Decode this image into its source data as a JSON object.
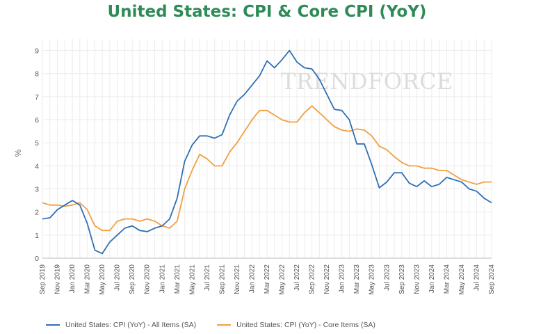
{
  "colors": {
    "cpi": "#2f6fb3",
    "core": "#f0a040",
    "title": "#2e8b57"
  },
  "watermark": "TRENDFORCE",
  "chart_data": {
    "type": "line",
    "title": "United States: CPI & Core CPI (YoY)",
    "xlabel": "",
    "ylabel": "%",
    "ylim": [
      0,
      9.5
    ],
    "yticks": [
      0,
      1,
      2,
      3,
      4,
      5,
      6,
      7,
      8,
      9
    ],
    "x": [
      "Sep 2019",
      "Oct 2019",
      "Nov 2019",
      "Dec 2019",
      "Jan 2020",
      "Feb 2020",
      "Mar 2020",
      "Apr 2020",
      "May 2020",
      "Jun 2020",
      "Jul 2020",
      "Aug 2020",
      "Sep 2020",
      "Oct 2020",
      "Nov 2020",
      "Dec 2020",
      "Jan 2021",
      "Feb 2021",
      "Mar 2021",
      "Apr 2021",
      "May 2021",
      "Jun 2021",
      "Jul 2021",
      "Aug 2021",
      "Sep 2021",
      "Oct 2021",
      "Nov 2021",
      "Dec 2021",
      "Jan 2022",
      "Feb 2022",
      "Mar 2022",
      "Apr 2022",
      "May 2022",
      "Jun 2022",
      "Jul 2022",
      "Aug 2022",
      "Sep 2022",
      "Oct 2022",
      "Nov 2022",
      "Dec 2022",
      "Jan 2023",
      "Feb 2023",
      "Mar 2023",
      "Apr 2023",
      "May 2023",
      "Jun 2023",
      "Jul 2023",
      "Aug 2023",
      "Sep 2023",
      "Oct 2023",
      "Nov 2023",
      "Dec 2023",
      "Jan 2024",
      "Feb 2024",
      "Mar 2024",
      "Apr 2024",
      "May 2024",
      "Jun 2024",
      "Jul 2024",
      "Aug 2024",
      "Sep 2024"
    ],
    "series": [
      {
        "name": "United States: CPI (YoY) - All Items (SA)",
        "values": [
          1.7,
          1.75,
          2.1,
          2.3,
          2.5,
          2.3,
          1.5,
          0.35,
          0.2,
          0.7,
          1.0,
          1.3,
          1.4,
          1.2,
          1.15,
          1.3,
          1.4,
          1.7,
          2.6,
          4.2,
          4.9,
          5.3,
          5.3,
          5.2,
          5.35,
          6.2,
          6.8,
          7.1,
          7.5,
          7.9,
          8.55,
          8.25,
          8.6,
          9.0,
          8.5,
          8.25,
          8.2,
          7.75,
          7.1,
          6.45,
          6.4,
          6.0,
          4.95,
          4.95,
          4.05,
          3.05,
          3.3,
          3.7,
          3.7,
          3.25,
          3.1,
          3.35,
          3.1,
          3.2,
          3.5,
          3.4,
          3.3,
          3.0,
          2.9,
          2.6,
          2.4
        ]
      },
      {
        "name": "United States: CPI (YoY) - Core Items (SA)",
        "values": [
          2.4,
          2.3,
          2.3,
          2.25,
          2.3,
          2.4,
          2.1,
          1.4,
          1.2,
          1.2,
          1.6,
          1.7,
          1.7,
          1.6,
          1.7,
          1.6,
          1.4,
          1.3,
          1.6,
          3.0,
          3.8,
          4.5,
          4.3,
          4.0,
          4.0,
          4.6,
          5.0,
          5.5,
          6.0,
          6.4,
          6.4,
          6.2,
          6.0,
          5.9,
          5.9,
          6.3,
          6.6,
          6.3,
          6.0,
          5.7,
          5.55,
          5.5,
          5.6,
          5.55,
          5.3,
          4.85,
          4.7,
          4.4,
          4.15,
          4.0,
          4.0,
          3.9,
          3.9,
          3.8,
          3.8,
          3.6,
          3.4,
          3.3,
          3.2,
          3.3,
          3.3
        ]
      }
    ],
    "legend": [
      "United States: CPI (YoY) - All Items (SA)",
      "United States: CPI (YoY) - Core Items (SA)"
    ],
    "legend_position": "bottom",
    "grid": true
  }
}
